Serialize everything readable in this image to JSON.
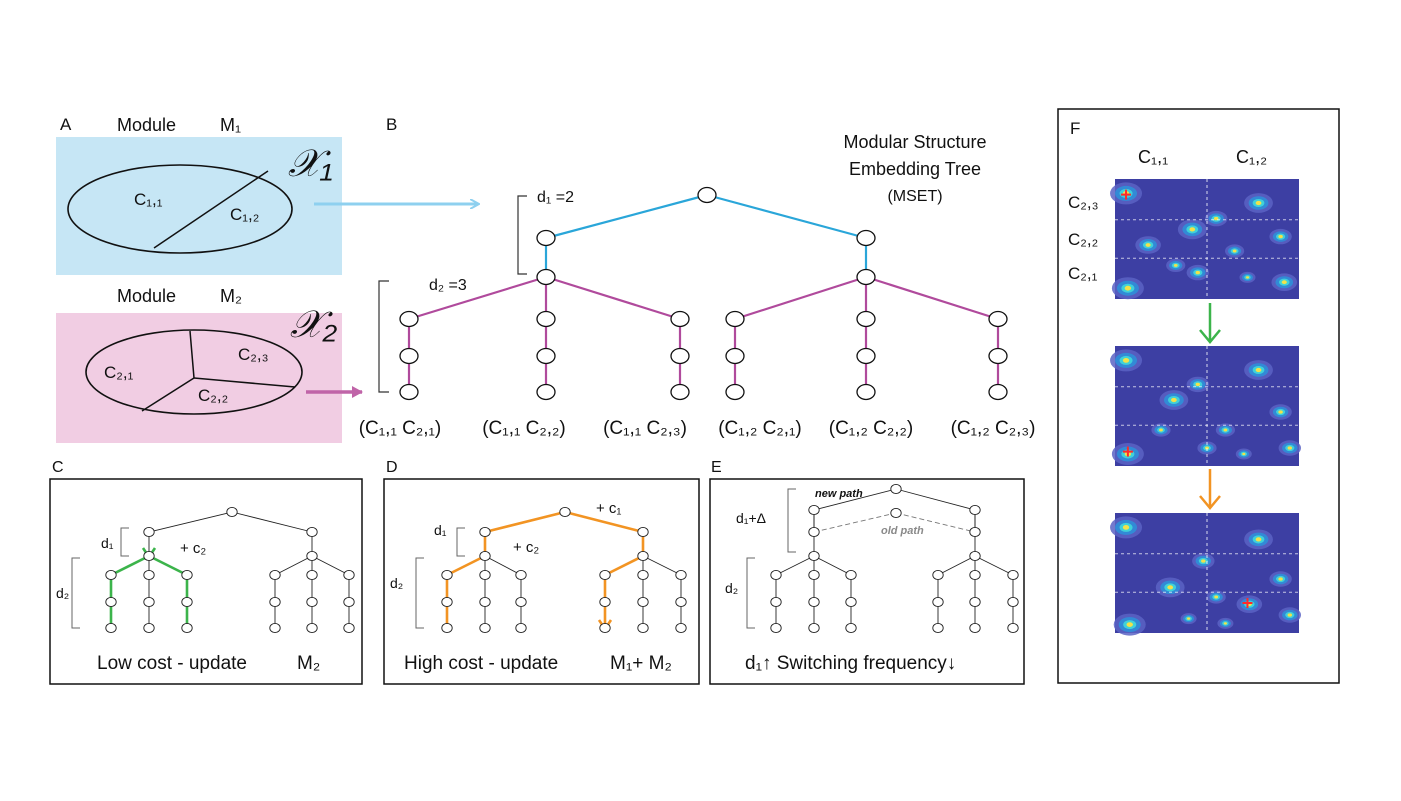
{
  "panels": {
    "a": {
      "letter": "A",
      "module1": "Module",
      "m1": "M₁",
      "module2": "Module",
      "m2": "M₂",
      "x1": "𝒳₁",
      "x2": "𝒳₂",
      "c11": "C₁,₁",
      "c12": "C₁,₂",
      "c21": "C₂,₁",
      "c22": "C₂,₂",
      "c23": "C₂,₃"
    },
    "b": {
      "letter": "B",
      "title_l1": "Modular Structure",
      "title_l2": "Embedding Tree",
      "title_l3": "(MSET)",
      "d1": "d₁ =2",
      "d2": "d₂ =3",
      "leaves": [
        "(C₁,₁ C₂,₁)",
        "(C₁,₁ C₂,₂)",
        "(C₁,₁ C₂,₃)",
        "(C₁,₂ C₂,₁)",
        "(C₁,₂ C₂,₂)",
        "(C₁,₂ C₂,₃)"
      ]
    },
    "c": {
      "letter": "C",
      "d1": "d₁",
      "d2": "d₂",
      "cost": "+ c₂",
      "caption": "Low cost - update",
      "caption_m": "M₂"
    },
    "d": {
      "letter": "D",
      "d1": "d₁",
      "d2": "d₂",
      "cost1": "+ c₁",
      "cost2": "+ c₂",
      "caption": "High cost - update",
      "caption_m": "M₁+ M₂"
    },
    "e": {
      "letter": "E",
      "d1": "d₁+Δ",
      "d2": "d₂",
      "new_path": "new path",
      "old_path": "old path",
      "caption": "d₁↑ Switching frequency↓"
    },
    "f": {
      "letter": "F",
      "col1": "C₁,₁",
      "col2": "C₁,₂",
      "row3": "C₂,₃",
      "row2": "C₂,₂",
      "row1": "C₂,₁"
    }
  },
  "colors": {
    "m1_box": "#c6e6f5",
    "m2_box": "#f1cde3",
    "m1_edge": "#2aa6d9",
    "m2_edge": "#b04a9c",
    "low_cost": "#3cb44b",
    "high_cost": "#f29423",
    "heatmap_bg": "#3d3fa3"
  }
}
